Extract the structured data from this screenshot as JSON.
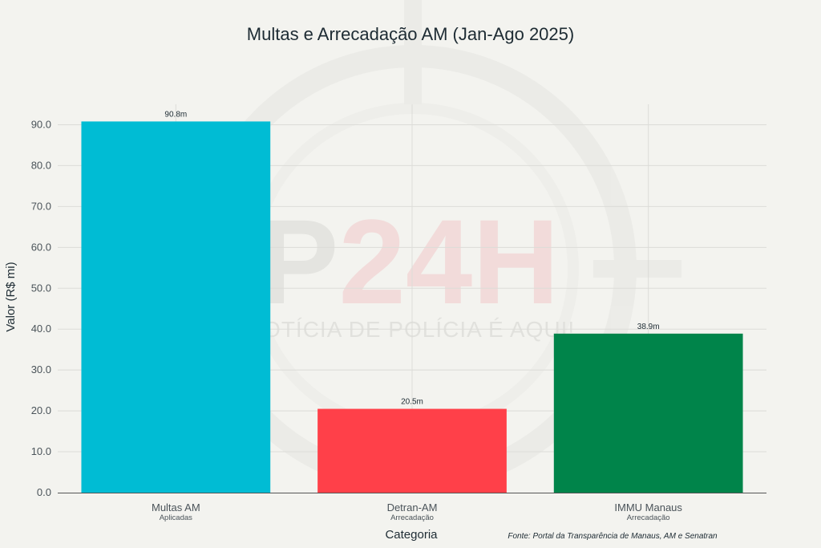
{
  "chart_data": {
    "type": "bar",
    "title": "Multas e Arrecadação AM (Jan-Ago 2025)",
    "xlabel": "Categoria",
    "ylabel": "Valor (R$ mi)",
    "ylim": [
      0,
      95
    ],
    "yticks": [
      "0.0",
      "10.0",
      "20.0",
      "30.0",
      "40.0",
      "50.0",
      "60.0",
      "70.0",
      "80.0",
      "90.0"
    ],
    "categories": [
      "Multas AM",
      "Detran-AM",
      "IMMU Manaus"
    ],
    "subcategories": [
      "Aplicadas",
      "Arrecadação",
      "Arrecadação"
    ],
    "values": [
      90.8,
      20.5,
      38.9
    ],
    "data_labels": [
      "90.8m",
      "20.5m",
      "38.9m"
    ],
    "colors": [
      "#00bcd4",
      "#ff4049",
      "#00844a"
    ],
    "grid": true,
    "legend": "none",
    "source": "Fonte: Portal da Transparência de Manaus, AM e Senatran"
  },
  "watermark": {
    "logo_text": "P24H",
    "tagline": "NOTÍCIA DE POLÍCIA É AQUI!"
  }
}
